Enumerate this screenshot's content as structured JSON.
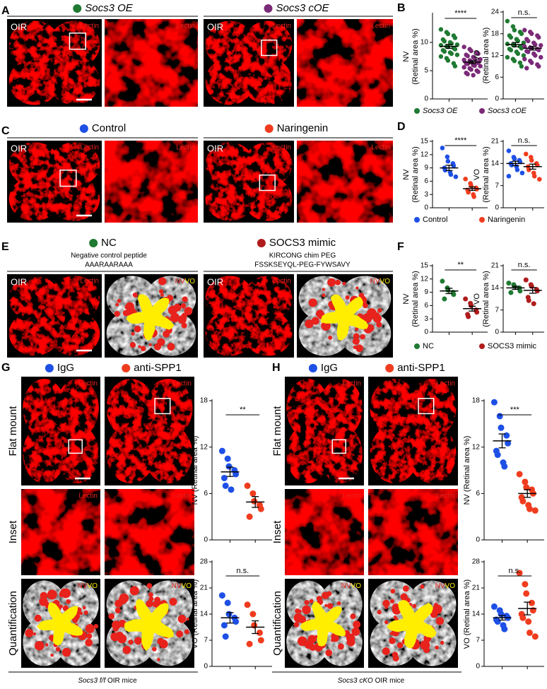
{
  "figure": {
    "panel_labels": [
      "A",
      "B",
      "C",
      "D",
      "E",
      "F",
      "G",
      "H"
    ],
    "model": "OIR",
    "stain": "Lectin",
    "nv": "NV",
    "vo": "VO",
    "header_A": [
      "Socs3 OE",
      "Socs3 cOE"
    ],
    "header_C": [
      "Control",
      "Naringenin"
    ],
    "header_E": [
      {
        "name": "NC",
        "desc": [
          "Negative control peptide",
          "AAARAARAAA"
        ]
      },
      {
        "name": "SOCS3 mimic",
        "desc": [
          "KIRCONG chim PEG",
          "FSSKSEYQL-PEG-FYWSAVY"
        ]
      }
    ],
    "header_G": [
      "IgG",
      "anti-SPP1"
    ],
    "header_H": [
      "IgG",
      "anti-SPP1"
    ],
    "row_labels": [
      "Flat mount",
      "Inset",
      "Quantification"
    ],
    "caption_G": [
      "Socs3 f/f",
      "OIR mice"
    ],
    "caption_H": [
      "Socs3 cKO",
      "OIR mice"
    ]
  },
  "chart_data": [
    {
      "type": "dot",
      "ylabel": [
        "NV",
        "(Retinal area %)"
      ],
      "ylim": [
        0,
        15
      ],
      "yticks": [
        0,
        5,
        10
      ],
      "significance": "****",
      "series": [
        {
          "name": "Socs3 OE",
          "color": "#1f7a32",
          "values": [
            12.3,
            11.8,
            11.5,
            11.2,
            10.8,
            10.5,
            10.2,
            10,
            9.8,
            9.6,
            9.5,
            9.3,
            9.2,
            9,
            8.8,
            8.6,
            8.4,
            8.2,
            8,
            7.8,
            7.5,
            7.2,
            6.8,
            6.3,
            5.8
          ],
          "mean": 9.3,
          "sem": 0.35
        },
        {
          "name": "Socs3 cOE",
          "color": "#7b2a78",
          "values": [
            9.2,
            8.8,
            8.5,
            8.2,
            8,
            7.8,
            7.6,
            7.4,
            7.2,
            7,
            6.9,
            6.8,
            6.6,
            6.5,
            6.4,
            6.3,
            6.2,
            6,
            5.9,
            5.8,
            5.6,
            5.4,
            5.2,
            5,
            4.8,
            4.6,
            4.4,
            4.2
          ],
          "mean": 6.5,
          "sem": 0.25
        }
      ]
    },
    {
      "type": "dot",
      "ylabel": [
        "VO",
        "(Retinal area %)"
      ],
      "ylim": [
        0,
        24
      ],
      "yticks": [
        0,
        6,
        12,
        18,
        24
      ],
      "significance": "n.s.",
      "series": [
        {
          "color": "#1f7a32",
          "values": [
            21.5,
            20,
            19,
            18.5,
            18,
            17.5,
            17,
            16.5,
            16,
            15.5,
            15.2,
            15,
            14.8,
            14.5,
            14,
            13.8,
            13.5,
            13,
            12.5,
            12,
            11.5,
            11,
            10.5,
            10,
            9
          ],
          "mean": 15,
          "sem": 0.6
        },
        {
          "color": "#7b2a78",
          "values": [
            19,
            18.5,
            18,
            17.5,
            17,
            16.5,
            16,
            15.5,
            15,
            14.8,
            14.5,
            14.2,
            14,
            13.8,
            13.5,
            13.2,
            13,
            12.5,
            12,
            11.5,
            11,
            10.5,
            10,
            9.5,
            9,
            8.5
          ],
          "mean": 14,
          "sem": 0.5
        }
      ]
    },
    {
      "type": "dot",
      "ylabel": [
        "NV",
        "(Retinal area %)"
      ],
      "ylim": [
        0,
        15
      ],
      "yticks": [
        0,
        3,
        6,
        9,
        12,
        15
      ],
      "significance": "****",
      "series": [
        {
          "name": "Control",
          "color": "#1e50e6",
          "values": [
            13.5,
            11.5,
            10.5,
            10,
            9.5,
            9,
            8.5,
            8,
            7.5,
            7
          ],
          "mean": 9,
          "sem": 0.6
        },
        {
          "name": "Naringenin",
          "color": "#f03c1e",
          "values": [
            6.5,
            5.5,
            5,
            4.5,
            4.2,
            4,
            3.5,
            3,
            2.5
          ],
          "mean": 4.3,
          "sem": 0.4
        }
      ]
    },
    {
      "type": "dot",
      "ylabel": [
        "VO",
        "(Retinal area %)"
      ],
      "ylim": [
        0,
        21
      ],
      "yticks": [
        0,
        7,
        14,
        21
      ],
      "significance": "n.s.",
      "series": [
        {
          "color": "#1e50e6",
          "values": [
            18,
            16,
            15.5,
            15,
            14.5,
            14,
            13.5,
            13,
            12,
            11,
            10
          ],
          "mean": 14,
          "sem": 0.7
        },
        {
          "color": "#f03c1e",
          "values": [
            17,
            16,
            15,
            14,
            13.5,
            13,
            12,
            11,
            10,
            9
          ],
          "mean": 13,
          "sem": 0.8
        }
      ]
    },
    {
      "type": "dot",
      "ylabel": [
        "NV",
        "(Retinal area %)"
      ],
      "ylim": [
        0,
        15
      ],
      "yticks": [
        0,
        3,
        6,
        9,
        12,
        15
      ],
      "significance": "**",
      "series": [
        {
          "name": "NC",
          "color": "#1f7a32",
          "values": [
            11.5,
            10,
            9.5,
            9,
            8.5,
            7.5
          ],
          "mean": 9.3,
          "sem": 0.6
        },
        {
          "name": "SOCS3 mimic",
          "color": "#b01c1c",
          "values": [
            7.5,
            6.5,
            6,
            5,
            4.5,
            4,
            3.5
          ],
          "mean": 5.3,
          "sem": 0.55
        }
      ]
    },
    {
      "type": "dot",
      "ylabel": [
        "VO",
        "(Retinal area %)"
      ],
      "ylim": [
        0,
        21
      ],
      "yticks": [
        0,
        7,
        14,
        21
      ],
      "significance": "n.s.",
      "series": [
        {
          "color": "#1f7a32",
          "values": [
            15.5,
            15,
            14.5,
            14,
            13,
            12.5
          ],
          "mean": 14,
          "sem": 0.5
        },
        {
          "color": "#b01c1c",
          "values": [
            16.5,
            15,
            14.5,
            13.5,
            13,
            11,
            10,
            9
          ],
          "mean": 13.2,
          "sem": 0.9
        }
      ]
    },
    {
      "type": "dot",
      "ylabel": [
        "NV (Retinal area %)"
      ],
      "ylim": [
        0,
        18
      ],
      "yticks": [
        0,
        6,
        12,
        18
      ],
      "significance": "**",
      "series": [
        {
          "color": "#1e50e6",
          "values": [
            11.5,
            10.5,
            9.5,
            9,
            8.5,
            8,
            7,
            6.5
          ],
          "mean": 8.8,
          "sem": 0.6
        },
        {
          "color": "#f03c1e",
          "values": [
            7,
            6,
            5,
            4.5,
            4,
            3
          ],
          "mean": 4.9,
          "sem": 0.7
        }
      ]
    },
    {
      "type": "dot",
      "ylabel": [
        "VO (Retinal area %)"
      ],
      "ylim": [
        0,
        28
      ],
      "yticks": [
        0,
        7,
        14,
        21,
        28
      ],
      "significance": "n.s.",
      "series": [
        {
          "color": "#1e50e6",
          "values": [
            19,
            17,
            14,
            13,
            12,
            11,
            8
          ],
          "mean": 13,
          "sem": 1.4
        },
        {
          "color": "#f03c1e",
          "values": [
            16.5,
            14,
            11,
            9,
            7,
            6
          ],
          "mean": 10.5,
          "sem": 1.7
        }
      ]
    },
    {
      "type": "dot",
      "ylabel": [
        "NV (Retinal area %)"
      ],
      "ylim": [
        0,
        18
      ],
      "yticks": [
        0,
        6,
        12,
        18
      ],
      "significance": "***",
      "series": [
        {
          "color": "#1e50e6",
          "values": [
            17.8,
            16,
            14.5,
            13.5,
            12.5,
            11.5,
            11,
            10,
            9.5
          ],
          "mean": 12.8,
          "sem": 0.9
        },
        {
          "color": "#f03c1e",
          "values": [
            8.5,
            7.5,
            6.8,
            6.5,
            6,
            5.5,
            5,
            4.5,
            4,
            3.8
          ],
          "mean": 6,
          "sem": 0.5
        }
      ]
    },
    {
      "type": "dot",
      "ylabel": [
        "VO (Retinal area %)"
      ],
      "ylim": [
        0,
        28
      ],
      "yticks": [
        0,
        7,
        14,
        21,
        28
      ],
      "significance": "n.s.",
      "series": [
        {
          "color": "#1e50e6",
          "values": [
            16,
            15,
            14,
            13.5,
            13,
            12.5,
            12,
            11,
            10
          ],
          "mean": 13,
          "sem": 0.6
        },
        {
          "color": "#f03c1e",
          "values": [
            25,
            22,
            19.5,
            17,
            15,
            14,
            13,
            12,
            9,
            8
          ],
          "mean": 15.5,
          "sem": 1.7
        }
      ]
    }
  ]
}
